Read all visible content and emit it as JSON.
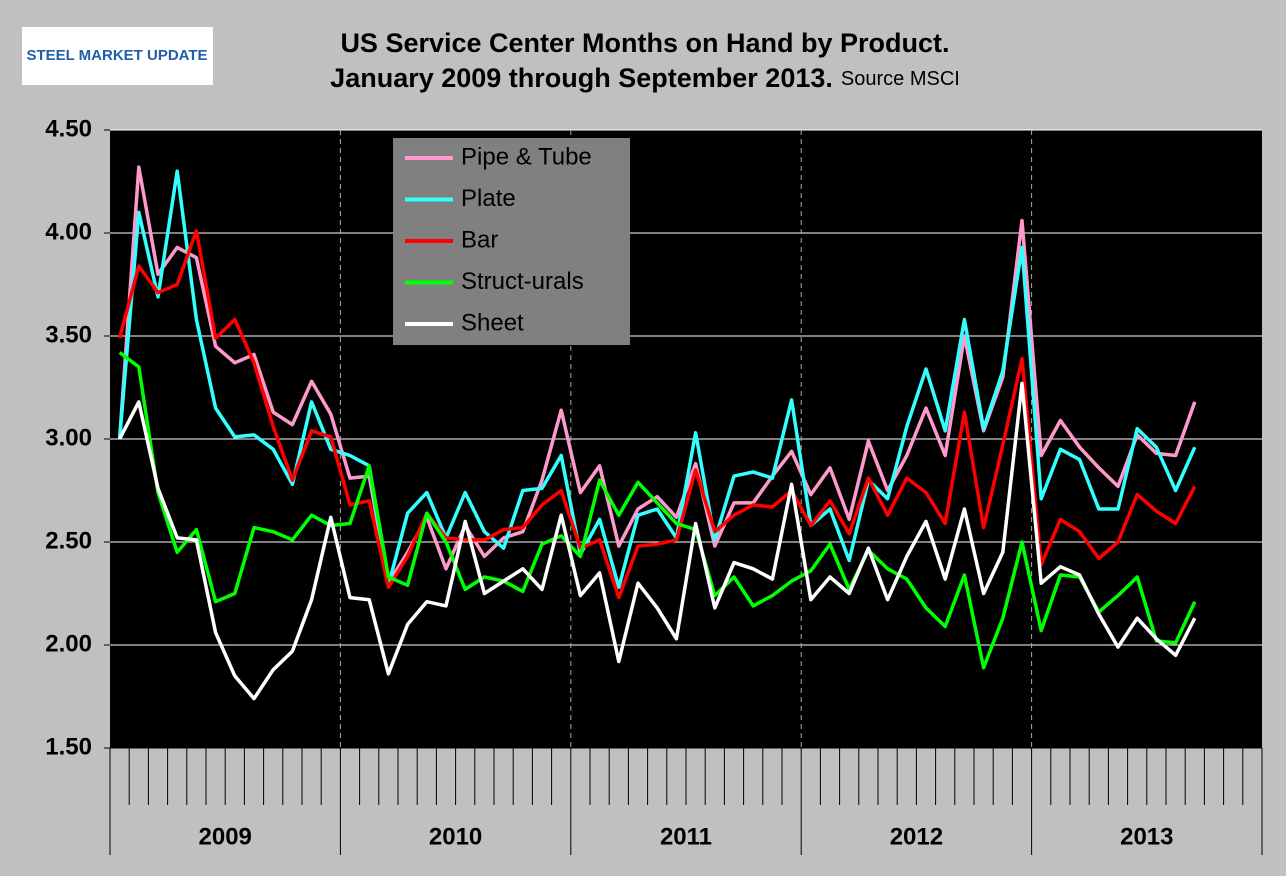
{
  "logo": "STEEL MARKET UPDATE",
  "chart_data": {
    "type": "line",
    "title": "US Service Center Months on Hand by Product.",
    "subtitle": "January 2009 through September 2013.",
    "source": "Source MSCI",
    "categories": [
      null,
      null,
      null,
      null,
      null,
      null,
      null,
      null,
      null,
      null,
      null,
      null,
      null,
      null,
      null,
      null,
      null,
      null,
      null,
      null,
      null,
      null,
      null,
      null,
      null,
      null,
      null,
      null,
      null,
      null,
      null,
      null,
      null,
      null,
      null,
      null,
      null,
      null,
      null,
      null,
      null,
      null,
      null,
      null,
      null,
      null,
      null,
      null,
      null,
      null,
      null,
      null,
      null,
      null,
      null,
      null,
      null,
      null,
      null,
      null
    ],
    "year_labels": [
      "2009",
      "2010",
      "2011",
      "2012",
      "2013"
    ],
    "ylim": [
      1.5,
      4.5
    ],
    "yticks": [
      {
        "value": 1.5,
        "label": "1.50"
      },
      {
        "value": 2,
        "label": "2.00"
      },
      {
        "value": 2.5,
        "label": "2.50"
      },
      {
        "value": 3,
        "label": "3.00"
      },
      {
        "value": 3.5,
        "label": "3.50"
      },
      {
        "value": 4,
        "label": "4.00"
      },
      {
        "value": 4.5,
        "label": "4.50"
      }
    ],
    "grid": true,
    "legend": "top-left",
    "series": [
      {
        "name": "Pipe & Tube",
        "color": "#ff99cc",
        "values": [
          3.0,
          4.32,
          3.8,
          3.93,
          3.88,
          3.45,
          3.37,
          3.41,
          3.13,
          3.07,
          3.28,
          3.12,
          2.81,
          2.82,
          2.3,
          2.45,
          2.62,
          2.37,
          2.58,
          2.43,
          2.52,
          2.55,
          2.8,
          3.14,
          2.74,
          2.87,
          2.48,
          2.66,
          2.72,
          2.62,
          2.88,
          2.48,
          2.69,
          2.69,
          2.82,
          2.94,
          2.73,
          2.86,
          2.61,
          2.99,
          2.75,
          2.92,
          3.15,
          2.92,
          3.5,
          3.04,
          3.3,
          4.06,
          2.92,
          3.09,
          2.96,
          2.86,
          2.77,
          3.02,
          2.93,
          2.92,
          3.18,
          null,
          null,
          null
        ]
      },
      {
        "name": "Plate",
        "color": "#33ffff",
        "values": [
          3.0,
          4.1,
          3.69,
          4.3,
          3.58,
          3.15,
          3.01,
          3.02,
          2.95,
          2.78,
          3.18,
          2.95,
          2.92,
          2.87,
          2.29,
          2.64,
          2.74,
          2.52,
          2.74,
          2.55,
          2.47,
          2.75,
          2.76,
          2.92,
          2.44,
          2.61,
          2.28,
          2.63,
          2.66,
          2.52,
          3.03,
          2.51,
          2.82,
          2.84,
          2.81,
          3.19,
          2.58,
          2.66,
          2.41,
          2.8,
          2.71,
          3.06,
          3.34,
          3.04,
          3.58,
          3.05,
          3.33,
          3.93,
          2.71,
          2.95,
          2.9,
          2.66,
          2.66,
          3.05,
          2.96,
          2.75,
          2.96,
          null,
          null,
          null
        ]
      },
      {
        "name": "Bar",
        "color": "#ff0000",
        "values": [
          3.49,
          3.84,
          3.71,
          3.75,
          4.01,
          3.49,
          3.58,
          3.37,
          3.06,
          2.8,
          3.04,
          3.01,
          2.68,
          2.7,
          2.28,
          2.43,
          2.64,
          2.52,
          2.51,
          2.51,
          2.56,
          2.57,
          2.68,
          2.75,
          2.47,
          2.51,
          2.23,
          2.48,
          2.49,
          2.51,
          2.85,
          2.55,
          2.63,
          2.68,
          2.67,
          2.75,
          2.58,
          2.7,
          2.54,
          2.81,
          2.63,
          2.81,
          2.74,
          2.59,
          3.13,
          2.57,
          2.97,
          3.39,
          2.39,
          2.61,
          2.55,
          2.42,
          2.5,
          2.73,
          2.65,
          2.59,
          2.77,
          null,
          null,
          null
        ]
      },
      {
        "name": "Struct-urals",
        "color": "#00ff00",
        "values": [
          3.42,
          3.35,
          2.74,
          2.45,
          2.56,
          2.21,
          2.25,
          2.57,
          2.55,
          2.51,
          2.63,
          2.58,
          2.59,
          2.87,
          2.33,
          2.29,
          2.64,
          2.5,
          2.27,
          2.33,
          2.31,
          2.26,
          2.49,
          2.53,
          2.43,
          2.8,
          2.63,
          2.79,
          2.69,
          2.59,
          2.56,
          2.24,
          2.33,
          2.19,
          2.24,
          2.31,
          2.36,
          2.49,
          2.27,
          2.46,
          2.37,
          2.32,
          2.18,
          2.09,
          2.34,
          1.89,
          2.13,
          2.5,
          2.07,
          2.34,
          2.33,
          2.16,
          2.24,
          2.33,
          2.02,
          2.01,
          2.21,
          null,
          null,
          null
        ]
      },
      {
        "name": "Sheet",
        "color": "#ffffff",
        "values": [
          3.0,
          3.18,
          2.76,
          2.52,
          2.51,
          2.06,
          1.85,
          1.74,
          1.88,
          1.97,
          2.22,
          2.62,
          2.23,
          2.22,
          1.86,
          2.1,
          2.21,
          2.19,
          2.6,
          2.25,
          2.31,
          2.37,
          2.27,
          2.63,
          2.24,
          2.35,
          1.92,
          2.3,
          2.18,
          2.03,
          2.59,
          2.18,
          2.4,
          2.37,
          2.32,
          2.78,
          2.22,
          2.33,
          2.25,
          2.47,
          2.22,
          2.43,
          2.6,
          2.32,
          2.66,
          2.25,
          2.45,
          3.27,
          2.3,
          2.38,
          2.34,
          2.15,
          1.99,
          2.13,
          2.03,
          1.95,
          2.13,
          null,
          null,
          null
        ]
      }
    ]
  }
}
